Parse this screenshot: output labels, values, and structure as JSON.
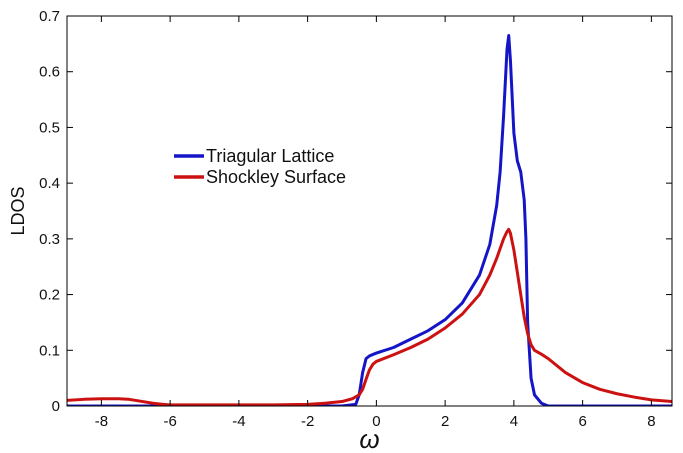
{
  "chart_data": {
    "type": "line",
    "title": "",
    "xlabel": "ω",
    "ylabel": "LDOS",
    "xlim": [
      -9,
      8.6
    ],
    "ylim": [
      0,
      0.7
    ],
    "xticks": [
      -8,
      -6,
      -4,
      -2,
      0,
      2,
      4,
      6,
      8
    ],
    "yticks": [
      0,
      0.1,
      0.2,
      0.3,
      0.4,
      0.5,
      0.6,
      0.7
    ],
    "grid": false,
    "legend_position": "upper-left, inside axes",
    "series": [
      {
        "name": "Triagular Lattice",
        "color": "#1515c8",
        "x": [
          -9,
          -1,
          -0.6,
          -0.5,
          -0.4,
          -0.3,
          -0.2,
          0,
          0.5,
          1,
          1.5,
          2,
          2.5,
          3,
          3.3,
          3.5,
          3.6,
          3.7,
          3.8,
          3.85,
          3.9,
          4.0,
          4.1,
          4.2,
          4.3,
          4.35,
          4.4,
          4.5,
          4.6,
          4.8,
          5,
          8.6
        ],
        "y": [
          0,
          0,
          0.003,
          0.02,
          0.06,
          0.085,
          0.09,
          0.095,
          0.105,
          0.12,
          0.135,
          0.155,
          0.185,
          0.235,
          0.29,
          0.36,
          0.42,
          0.52,
          0.64,
          0.665,
          0.62,
          0.49,
          0.44,
          0.42,
          0.37,
          0.3,
          0.15,
          0.05,
          0.02,
          0.005,
          0,
          0
        ]
      },
      {
        "name": "Shockley Surface",
        "color": "#cc1111",
        "x": [
          -9,
          -8.5,
          -8,
          -7.5,
          -7.2,
          -7,
          -6.5,
          -6.2,
          -6,
          -5,
          -3,
          -2,
          -1.5,
          -1,
          -0.7,
          -0.5,
          -0.4,
          -0.3,
          -0.2,
          -0.1,
          0,
          0.5,
          1,
          1.5,
          2,
          2.5,
          3,
          3.3,
          3.5,
          3.7,
          3.8,
          3.85,
          3.9,
          4.0,
          4.1,
          4.2,
          4.3,
          4.4,
          4.5,
          4.6,
          4.8,
          5.0,
          5.5,
          6,
          6.5,
          7,
          7.5,
          8,
          8.6
        ],
        "y": [
          0.01,
          0.012,
          0.013,
          0.013,
          0.012,
          0.01,
          0.005,
          0.003,
          0.002,
          0.002,
          0.002,
          0.003,
          0.005,
          0.008,
          0.013,
          0.02,
          0.03,
          0.048,
          0.065,
          0.075,
          0.08,
          0.092,
          0.105,
          0.12,
          0.14,
          0.165,
          0.2,
          0.235,
          0.265,
          0.3,
          0.313,
          0.317,
          0.31,
          0.28,
          0.24,
          0.2,
          0.16,
          0.13,
          0.11,
          0.1,
          0.093,
          0.085,
          0.06,
          0.042,
          0.03,
          0.022,
          0.016,
          0.011,
          0.008
        ]
      }
    ]
  }
}
